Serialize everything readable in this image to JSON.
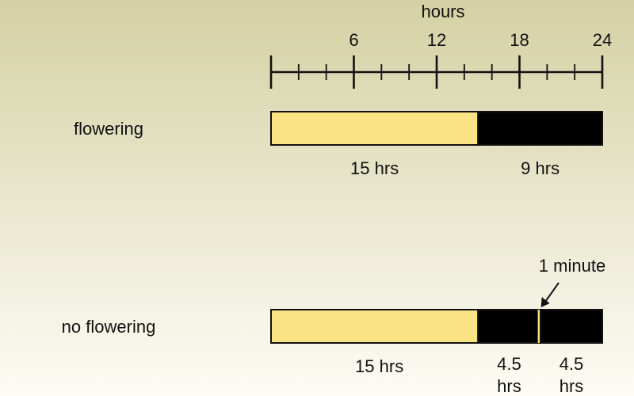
{
  "diagram": {
    "axis": {
      "label": "hours",
      "range": [
        0,
        24
      ],
      "minor_tick_step": 2,
      "major_ticks": [
        6,
        12,
        18,
        24
      ],
      "major_tick_labels": [
        "6",
        "12",
        "18",
        "24"
      ]
    },
    "rows": [
      {
        "label": "flowering",
        "segments": [
          {
            "kind": "light",
            "start": 0,
            "end": 15,
            "label": "15 hrs"
          },
          {
            "kind": "dark",
            "start": 15,
            "end": 24,
            "label": "9 hrs"
          }
        ]
      },
      {
        "label": "no flowering",
        "segments": [
          {
            "kind": "light",
            "start": 0,
            "end": 15,
            "label": "15 hrs"
          },
          {
            "kind": "dark",
            "start": 15,
            "end": 19.5,
            "label": "4.5 hrs"
          },
          {
            "kind": "flash",
            "start": 19.5,
            "end": 19.52
          },
          {
            "kind": "dark",
            "start": 19.52,
            "end": 24,
            "label": "4.5 hrs"
          }
        ],
        "callout": {
          "label": "1 minute",
          "at_hour": 19.5
        }
      }
    ]
  },
  "colors": {
    "background_top": "#d4d1a4",
    "background_bottom": "#fdfcf5",
    "light": "#fae384",
    "dark": "#000000",
    "ink": "#111111"
  }
}
